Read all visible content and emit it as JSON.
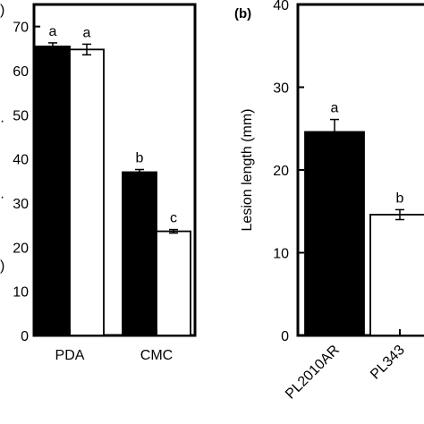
{
  "chart_data": [
    {
      "type": "bar",
      "panel_label": "",
      "title": "",
      "xlabel": "",
      "ylabel": "",
      "ylim": [
        0,
        75
      ],
      "yticks": [
        0,
        10,
        20,
        30,
        40,
        50,
        60,
        70
      ],
      "categories": [
        "PDA",
        "CMC"
      ],
      "series": [
        {
          "color": "#000000",
          "values": [
            65.5,
            37.0
          ],
          "errors": [
            0.8,
            0.6
          ],
          "letters": [
            "a",
            "b"
          ]
        },
        {
          "color": "#ffffff",
          "values": [
            64.8,
            23.6
          ],
          "errors": [
            1.2,
            0.4
          ],
          "letters": [
            "a",
            "c"
          ]
        }
      ],
      "grid": false,
      "legend": "none"
    },
    {
      "type": "bar",
      "panel_label": "(b)",
      "title": "",
      "xlabel": "",
      "ylabel": "Lesion length (mm)",
      "ylim": [
        0,
        40
      ],
      "yticks": [
        0,
        10,
        20,
        30,
        40
      ],
      "categories": [
        "PL2010AR",
        "PL343"
      ],
      "values": [
        24.6,
        14.6
      ],
      "errors": [
        1.5,
        0.6
      ],
      "colors": [
        "#000000",
        "#ffffff"
      ],
      "letters": [
        "a",
        "b"
      ],
      "grid": false,
      "legend": "none"
    }
  ]
}
